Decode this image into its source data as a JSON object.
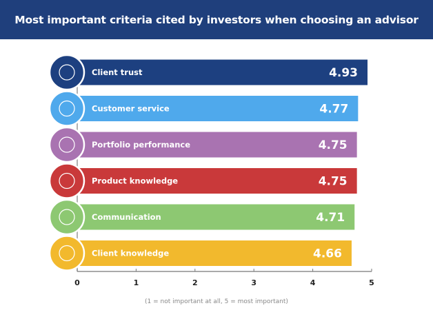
{
  "chart_data": {
    "type": "bar",
    "orientation": "horizontal",
    "title": "Most important criteria cited by investors when choosing an advisor",
    "categories": [
      "Client trust",
      "Customer service",
      "Portfolio performance",
      "Product knowledge",
      "Communication",
      "Client knowledge"
    ],
    "values": [
      4.93,
      4.77,
      4.75,
      4.75,
      4.71,
      4.66
    ],
    "value_labels": [
      "4.93",
      "4.77",
      "4.75",
      "4.75",
      "4.71",
      "4.66"
    ],
    "colors": [
      "#1d4080",
      "#4fa9ec",
      "#a973b1",
      "#c9393a",
      "#8dc872",
      "#f2b92d"
    ],
    "icons": [
      "thumbs-up-stars-icon",
      "customer-service-icon",
      "certificate-icon",
      "award-badge-icon",
      "phone-chat-icon",
      "client-rating-icon"
    ],
    "xlim": [
      0,
      5
    ],
    "xticks": [
      "0",
      "1",
      "2",
      "3",
      "4",
      "5"
    ],
    "note": "(1 = not important at all, 5 = most important)"
  }
}
